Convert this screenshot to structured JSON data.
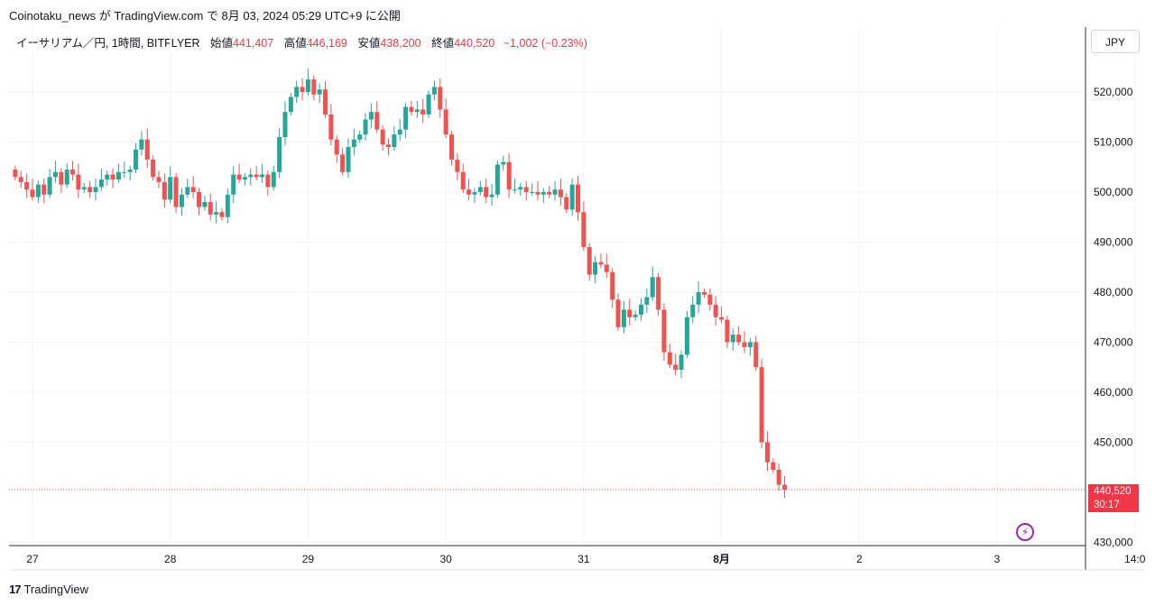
{
  "header": {
    "publish_line": "Coinotaku_news が TradingView.com で 8月 03, 2024 05:29 UTC+9 に公開"
  },
  "legend": {
    "symbol": "イーサリアム／円, 1時間, BITFLYER",
    "open_label": "始値",
    "open_value": "441,407",
    "high_label": "高値",
    "high_value": "446,169",
    "low_label": "安値",
    "low_value": "438,200",
    "close_label": "終値",
    "close_value": "440,520",
    "change": "−1,002 (−0.23%)"
  },
  "currency_button": "JPY",
  "last_price": {
    "value": "440,520",
    "countdown": "30:17"
  },
  "footer": {
    "logo_mark": "17",
    "logo_text": "TradingView"
  },
  "colors": {
    "up": "#26a69a",
    "down": "#ef5350",
    "grid": "#f0f3fa",
    "axis": "#131722"
  },
  "icons": {
    "alert": "lightning-icon"
  },
  "chart_data": {
    "type": "candlestick",
    "title": "",
    "y_ticks": [
      430000,
      440000,
      450000,
      460000,
      470000,
      480000,
      490000,
      500000,
      510000,
      520000
    ],
    "y_tick_labels": [
      "430,000",
      "440,000",
      "450,000",
      "460,000",
      "470,000",
      "480,000",
      "490,000",
      "500,000",
      "510,000",
      "520,000"
    ],
    "ylim": [
      429000,
      530000
    ],
    "x_tick_labels": [
      "27",
      "28",
      "29",
      "30",
      "31",
      "8月",
      "2",
      "3",
      "14:0"
    ],
    "x_tick_index": [
      24,
      48,
      72,
      96,
      120,
      144,
      168,
      192,
      216
    ],
    "xlim": [
      20,
      220
    ],
    "last_price_line": 440520,
    "series_close": [
      503000,
      502000,
      500500,
      499000,
      501500,
      499500,
      503000,
      504000,
      501500,
      504500,
      503500,
      500500,
      501000,
      500000,
      501000,
      502500,
      503500,
      502500,
      504000,
      504000,
      504500,
      508500,
      510500,
      506500,
      503000,
      502000,
      498500,
      503000,
      497000,
      499500,
      501000,
      500000,
      497000,
      498000,
      495500,
      496000,
      495000,
      499500,
      503500,
      502500,
      503000,
      503500,
      503000,
      503500,
      501000,
      504000,
      511000,
      516000,
      519000,
      521000,
      520000,
      522500,
      519500,
      520500,
      515500,
      510500,
      507500,
      504000,
      509000,
      510500,
      511500,
      514500,
      516000,
      512500,
      509500,
      509000,
      511500,
      512500,
      517000,
      516000,
      516500,
      515500,
      519500,
      521000,
      516500,
      511500,
      506500,
      504000,
      500500,
      499500,
      500000,
      501000,
      499000,
      499500,
      505500,
      506000,
      500500,
      500500,
      501000,
      500000,
      500000,
      499500,
      500000,
      499500,
      500500,
      499000,
      496500,
      501500,
      496000,
      489000,
      483500,
      486000,
      485500,
      484000,
      478500,
      473000,
      476500,
      475000,
      475500,
      477500,
      479000,
      483000,
      476500,
      468000,
      465500,
      464500,
      467500,
      475000,
      477500,
      480000,
      479500,
      477500,
      475000,
      474500,
      470000,
      471500,
      470000,
      469000,
      470000,
      465000,
      450000,
      446000,
      444500,
      441500,
      440520
    ]
  }
}
